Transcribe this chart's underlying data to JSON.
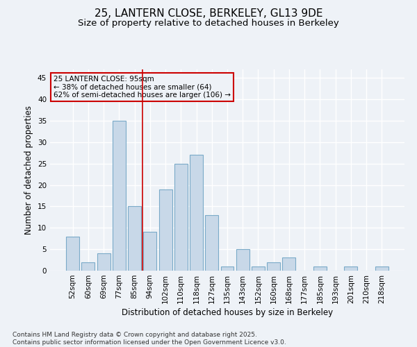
{
  "title1": "25, LANTERN CLOSE, BERKELEY, GL13 9DE",
  "title2": "Size of property relative to detached houses in Berkeley",
  "xlabel": "Distribution of detached houses by size in Berkeley",
  "ylabel": "Number of detached properties",
  "categories": [
    "52sqm",
    "60sqm",
    "69sqm",
    "77sqm",
    "85sqm",
    "94sqm",
    "102sqm",
    "110sqm",
    "118sqm",
    "127sqm",
    "135sqm",
    "143sqm",
    "152sqm",
    "160sqm",
    "168sqm",
    "177sqm",
    "185sqm",
    "193sqm",
    "201sqm",
    "210sqm",
    "218sqm"
  ],
  "values": [
    8,
    2,
    4,
    35,
    15,
    9,
    19,
    25,
    27,
    13,
    1,
    5,
    1,
    2,
    3,
    0,
    1,
    0,
    1,
    0,
    1
  ],
  "bar_color": "#c8d8e8",
  "bar_edge_color": "#7aaac8",
  "bg_color": "#eef2f7",
  "grid_color": "#ffffff",
  "annotation_box_text": "25 LANTERN CLOSE: 95sqm\n← 38% of detached houses are smaller (64)\n62% of semi-detached houses are larger (106) →",
  "annotation_box_color": "#cc0000",
  "vline_x": 4.5,
  "vline_color": "#cc0000",
  "ylim": [
    0,
    47
  ],
  "yticks": [
    0,
    5,
    10,
    15,
    20,
    25,
    30,
    35,
    40,
    45
  ],
  "footnote": "Contains HM Land Registry data © Crown copyright and database right 2025.\nContains public sector information licensed under the Open Government Licence v3.0.",
  "title_fontsize": 11,
  "subtitle_fontsize": 9.5,
  "axis_label_fontsize": 8.5,
  "tick_fontsize": 7.5,
  "annot_fontsize": 7.5,
  "footnote_fontsize": 6.5
}
